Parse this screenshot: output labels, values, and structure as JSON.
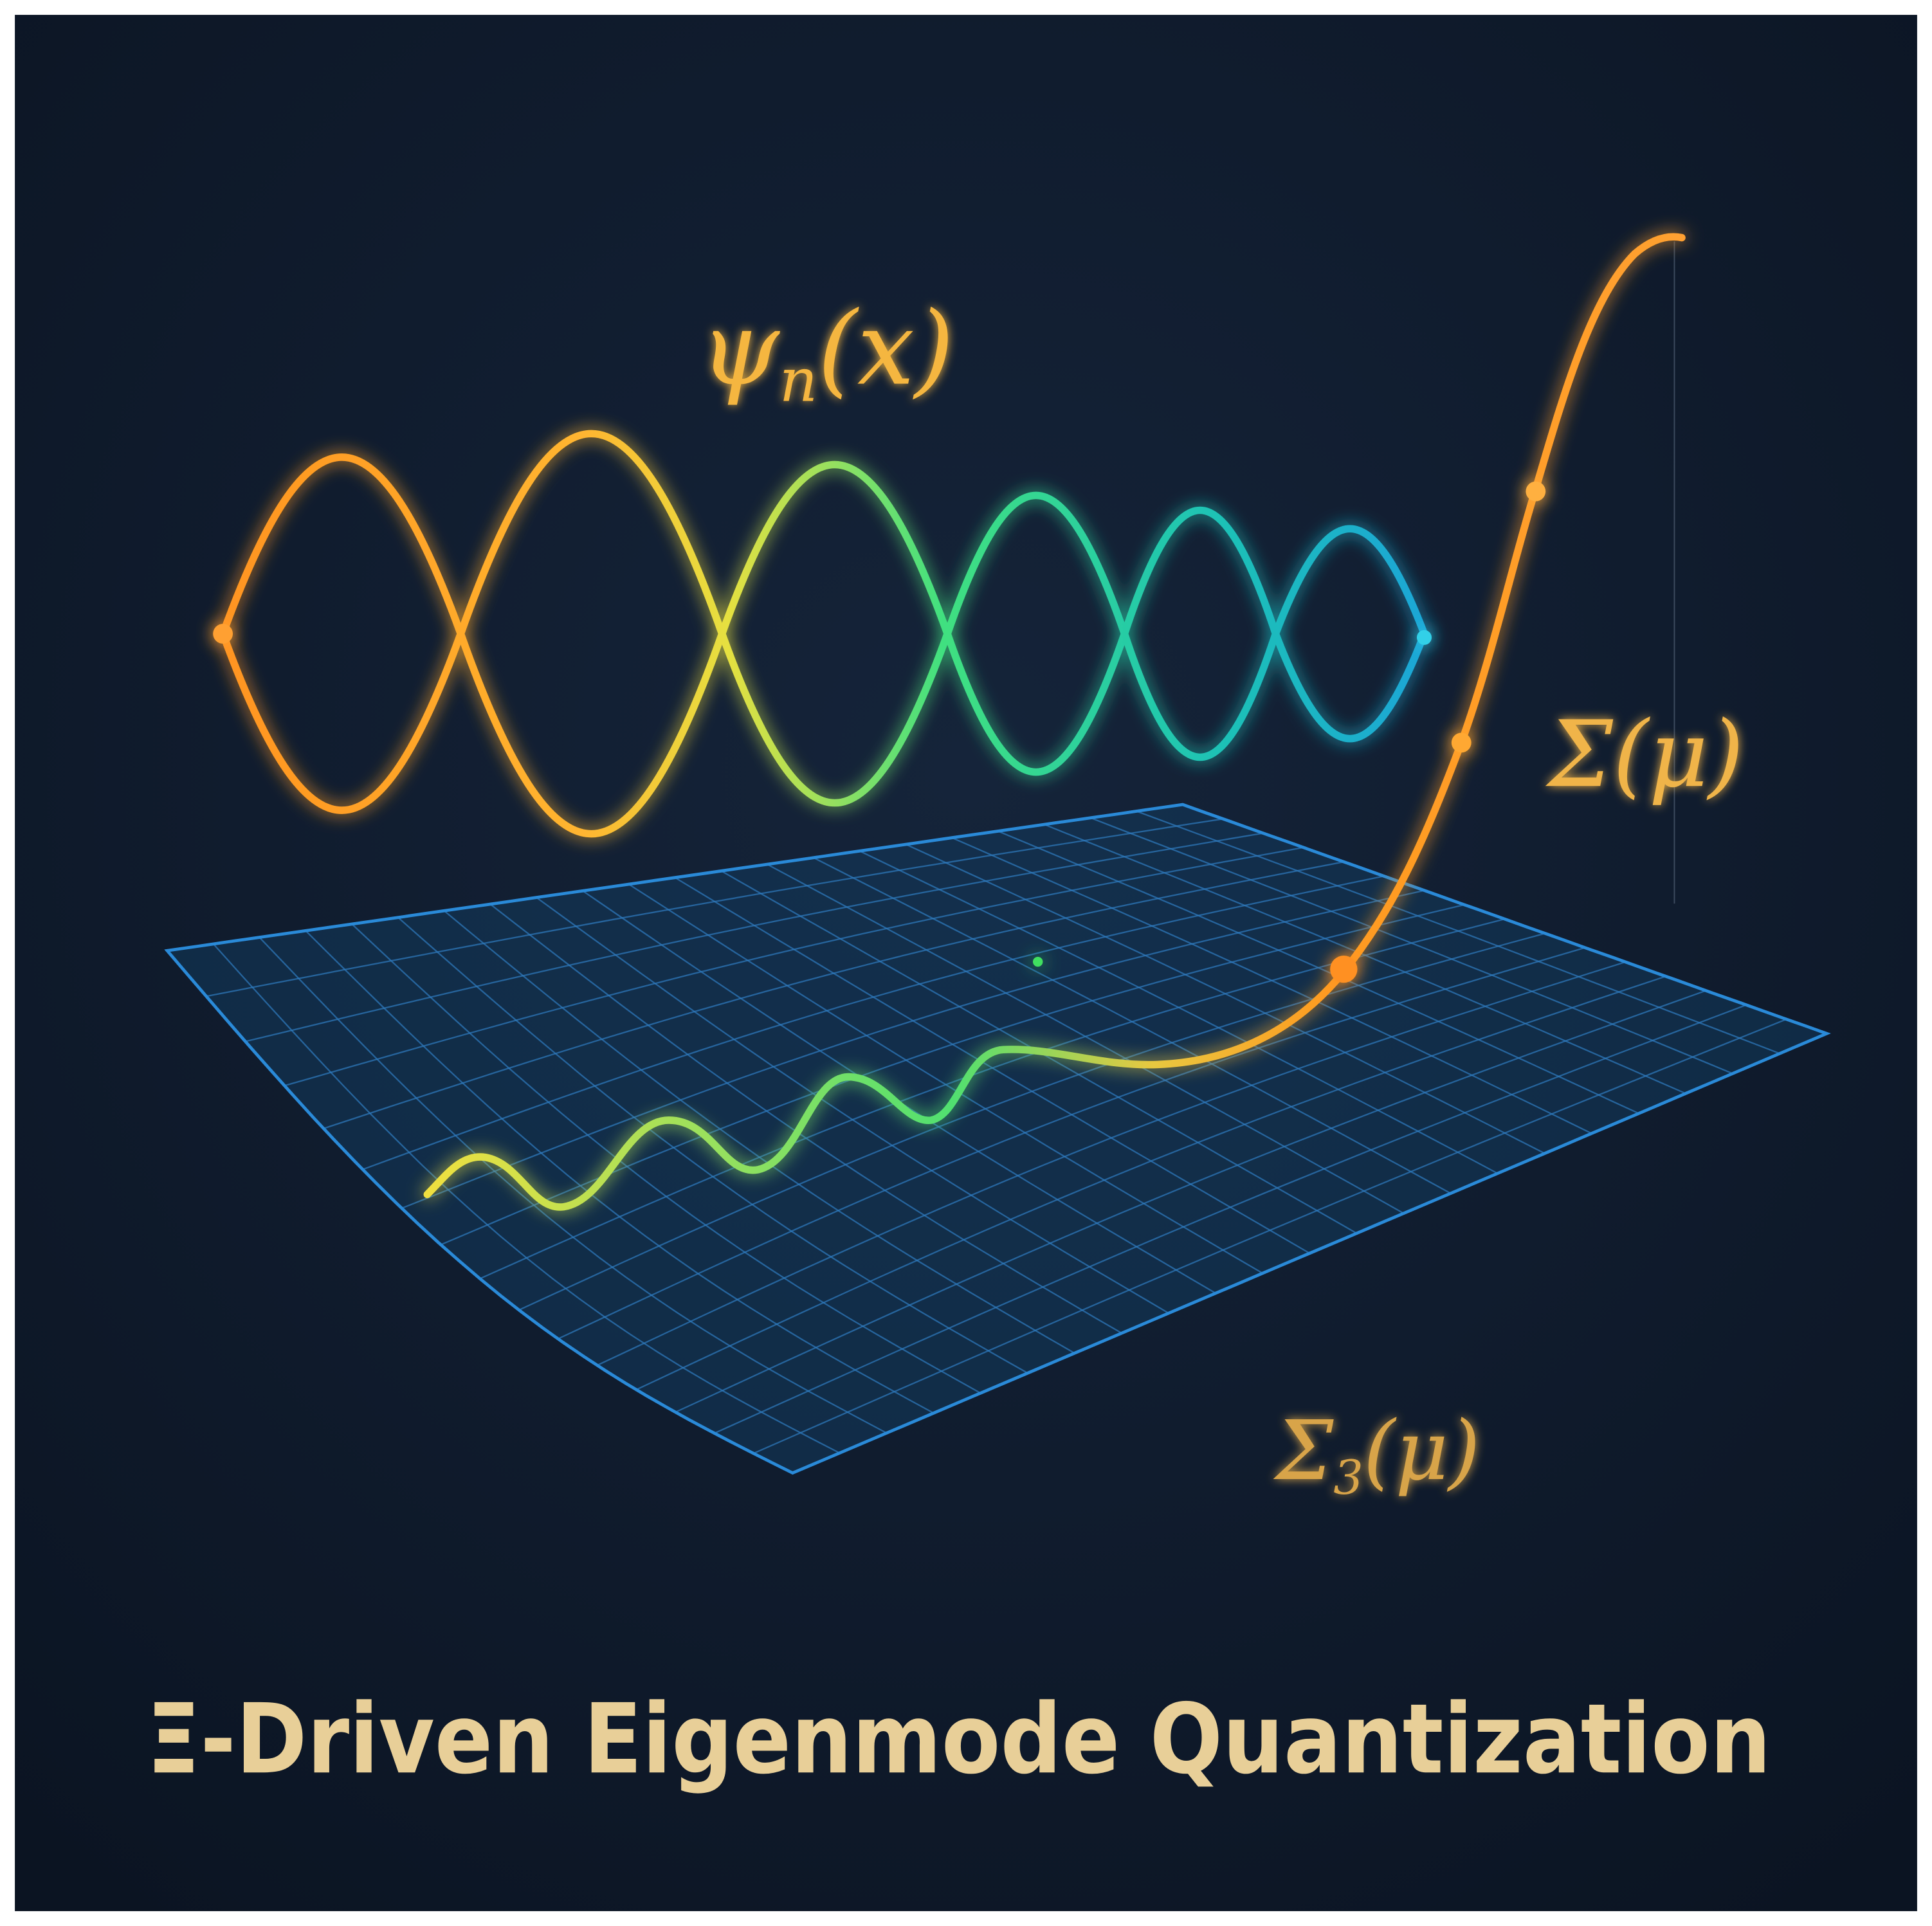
{
  "labels": [
    {
      "symbol": "ψ",
      "subscript": "n",
      "argument": "(x)"
    },
    {
      "symbol": "Σ",
      "argument": "(μ)"
    },
    {
      "symbol": "Σ",
      "subscript": "3",
      "argument": "(μ)"
    }
  ],
  "title": "Ξ-Driven Eigenmode Quantization"
}
